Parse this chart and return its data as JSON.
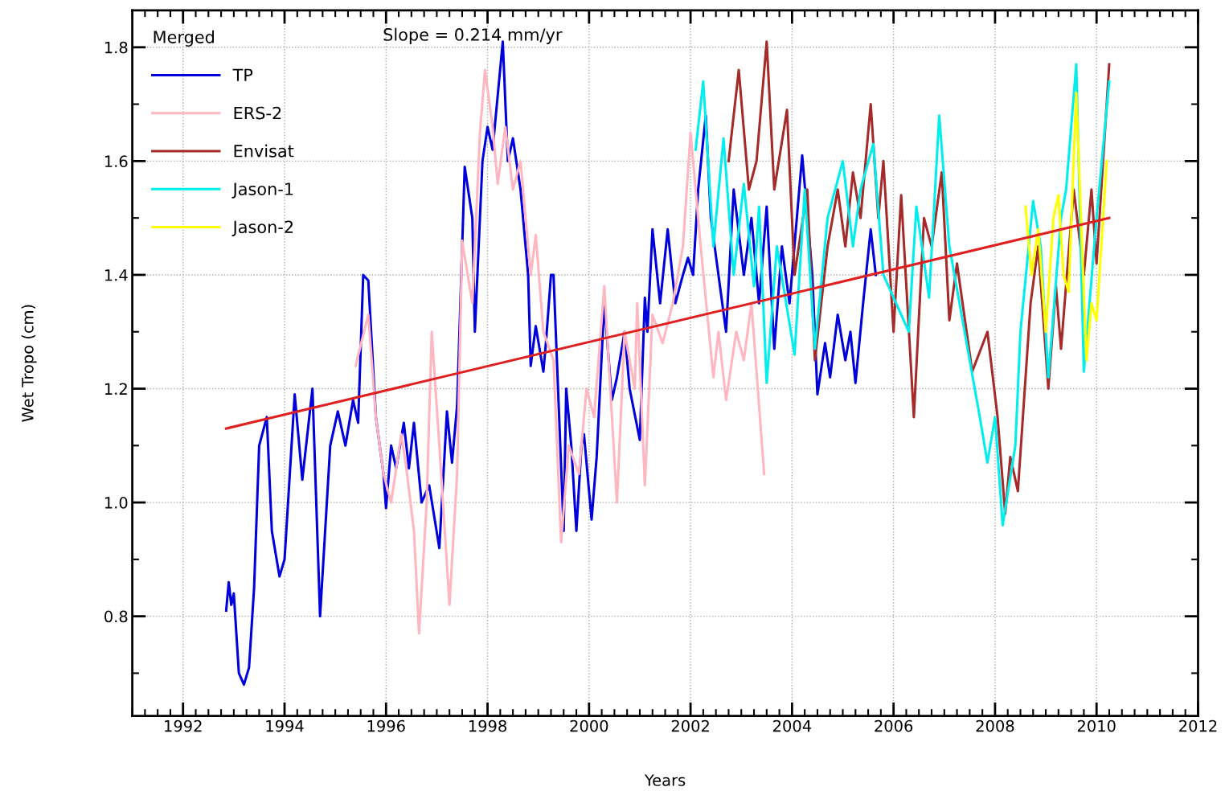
{
  "chart_data": {
    "type": "line",
    "xlabel": "Years",
    "ylabel": "Wet Tropo (cm)",
    "legend_title": "Merged",
    "annotations": [
      "Slope = 0.214 mm/yr"
    ],
    "xlim": [
      1991,
      2012
    ],
    "xticks": [
      1992,
      1994,
      1996,
      1998,
      2000,
      2002,
      2004,
      2006,
      2008,
      2010,
      2012
    ],
    "ylim": [
      0.625,
      1.865
    ],
    "yticks": [
      0.8,
      {
        "value": 1.0,
        "label": "1.0"
      },
      1.2,
      1.4,
      1.6,
      1.8
    ],
    "grid": true,
    "legend": "top left",
    "line_style": "solid",
    "series": [
      {
        "name": "TP",
        "color": "#0000dd",
        "x": [
          1992.85,
          1992.9,
          1992.95,
          1993.0,
          1993.1,
          1993.2,
          1993.3,
          1993.4,
          1993.5,
          1993.65,
          1993.75,
          1993.9,
          1994.0,
          1994.2,
          1994.35,
          1994.55,
          1994.7,
          1994.9,
          1995.05,
          1995.2,
          1995.35,
          1995.45,
          1995.55,
          1995.65,
          1995.8,
          1995.95,
          1996.0,
          1996.1,
          1996.2,
          1996.35,
          1996.45,
          1996.55,
          1996.7,
          1996.85,
          1997.05,
          1997.2,
          1997.3,
          1997.4,
          1997.55,
          1997.7,
          1997.75,
          1997.9,
          1998.0,
          1998.1,
          1998.3,
          1998.4,
          1998.5,
          1998.65,
          1998.8,
          1998.85,
          1998.95,
          1999.1,
          1999.15,
          1999.25,
          1999.3,
          1999.5,
          1999.55,
          1999.65,
          1999.75,
          1999.85,
          1999.9,
          2000.05,
          2000.15,
          2000.3,
          2000.45,
          2000.55,
          2000.7,
          2000.8,
          2001.0,
          2001.1,
          2001.15,
          2001.25,
          2001.4,
          2001.55,
          2001.7,
          2001.85,
          2001.95,
          2002.05,
          2002.15,
          2002.3,
          2002.4,
          2002.55,
          2002.7,
          2002.85,
          2003.05,
          2003.2,
          2003.35,
          2003.5,
          2003.65,
          2003.8,
          2003.95,
          2004.2,
          2004.4,
          2004.5,
          2004.65,
          2004.75,
          2004.9,
          2005.05,
          2005.15,
          2005.25,
          2005.4,
          2005.55,
          2005.65
        ],
        "values": [
          0.81,
          0.86,
          0.82,
          0.84,
          0.7,
          0.68,
          0.71,
          0.85,
          1.1,
          1.15,
          0.95,
          0.87,
          0.9,
          1.19,
          1.04,
          1.2,
          0.8,
          1.1,
          1.16,
          1.1,
          1.18,
          1.14,
          1.4,
          1.39,
          1.15,
          1.05,
          0.99,
          1.1,
          1.06,
          1.14,
          1.06,
          1.14,
          1.0,
          1.03,
          0.92,
          1.16,
          1.07,
          1.17,
          1.59,
          1.5,
          1.3,
          1.6,
          1.66,
          1.62,
          1.81,
          1.6,
          1.64,
          1.55,
          1.4,
          1.24,
          1.31,
          1.23,
          1.28,
          1.4,
          1.4,
          0.95,
          1.2,
          1.1,
          0.95,
          1.1,
          1.12,
          0.97,
          1.08,
          1.35,
          1.18,
          1.22,
          1.3,
          1.2,
          1.11,
          1.36,
          1.3,
          1.48,
          1.35,
          1.48,
          1.35,
          1.4,
          1.43,
          1.4,
          1.55,
          1.68,
          1.5,
          1.4,
          1.3,
          1.55,
          1.4,
          1.5,
          1.35,
          1.52,
          1.27,
          1.45,
          1.35,
          1.61,
          1.4,
          1.19,
          1.28,
          1.22,
          1.33,
          1.25,
          1.3,
          1.21,
          1.35,
          1.48,
          1.4
        ]
      },
      {
        "name": "ERS-2",
        "color": "#ffb6c1",
        "x": [
          1995.4,
          1995.65,
          1995.8,
          1995.95,
          1996.1,
          1996.3,
          1996.4,
          1996.55,
          1996.65,
          1996.8,
          1996.9,
          1997.05,
          1997.25,
          1997.4,
          1997.5,
          1997.7,
          1997.85,
          1997.95,
          1998.1,
          1998.2,
          1998.35,
          1998.5,
          1998.65,
          1998.85,
          1998.95,
          1999.1,
          1999.3,
          1999.45,
          1999.6,
          1999.8,
          1999.95,
          2000.1,
          2000.3,
          2000.55,
          2000.7,
          2000.9,
          2000.95,
          2001.1,
          2001.25,
          2001.45,
          2001.65,
          2001.85,
          2002.0,
          2002.2,
          2002.45,
          2002.55,
          2002.7,
          2002.9,
          2003.05,
          2003.2,
          2003.45
        ],
        "values": [
          1.24,
          1.33,
          1.15,
          1.05,
          1.0,
          1.12,
          1.06,
          0.95,
          0.77,
          1.0,
          1.3,
          1.1,
          0.82,
          1.05,
          1.46,
          1.35,
          1.65,
          1.76,
          1.66,
          1.56,
          1.66,
          1.55,
          1.6,
          1.4,
          1.47,
          1.3,
          1.25,
          0.93,
          1.1,
          1.05,
          1.2,
          1.15,
          1.38,
          1.0,
          1.3,
          1.2,
          1.35,
          1.03,
          1.33,
          1.28,
          1.35,
          1.45,
          1.65,
          1.45,
          1.22,
          1.3,
          1.18,
          1.3,
          1.25,
          1.35,
          1.05
        ]
      },
      {
        "name": "Envisat",
        "color": "#a52a2a",
        "x": [
          2002.75,
          2002.95,
          2003.15,
          2003.3,
          2003.5,
          2003.65,
          2003.9,
          2004.05,
          2004.3,
          2004.45,
          2004.7,
          2004.9,
          2005.05,
          2005.2,
          2005.35,
          2005.55,
          2005.7,
          2005.8,
          2006.0,
          2006.15,
          2006.4,
          2006.6,
          2006.75,
          2006.95,
          2007.1,
          2007.25,
          2007.55,
          2007.85,
          2008.05,
          2008.2,
          2008.3,
          2008.45,
          2008.7,
          2008.85,
          2009.05,
          2009.2,
          2009.3,
          2009.55,
          2009.75,
          2009.9,
          2010.0,
          2010.25
        ],
        "values": [
          1.6,
          1.76,
          1.55,
          1.6,
          1.81,
          1.55,
          1.69,
          1.4,
          1.55,
          1.25,
          1.45,
          1.55,
          1.45,
          1.58,
          1.5,
          1.7,
          1.5,
          1.6,
          1.3,
          1.54,
          1.15,
          1.5,
          1.45,
          1.58,
          1.32,
          1.42,
          1.23,
          1.3,
          1.15,
          0.98,
          1.08,
          1.02,
          1.35,
          1.45,
          1.2,
          1.38,
          1.27,
          1.55,
          1.4,
          1.55,
          1.42,
          1.77
        ]
      },
      {
        "name": "Jason-1",
        "color": "#00eeee",
        "x": [
          2002.1,
          2002.25,
          2002.45,
          2002.65,
          2002.85,
          2003.05,
          2003.25,
          2003.35,
          2003.5,
          2003.7,
          2004.05,
          2004.25,
          2004.45,
          2004.7,
          2005.0,
          2005.2,
          2005.35,
          2005.6,
          2005.8,
          2006.3,
          2006.45,
          2006.7,
          2006.9,
          2007.1,
          2007.4,
          2007.7,
          2007.85,
          2008.0,
          2008.15,
          2008.4,
          2008.5,
          2008.75,
          2008.9,
          2009.05,
          2009.3,
          2009.4,
          2009.6,
          2009.75,
          2010.0,
          2010.25
        ],
        "values": [
          1.62,
          1.74,
          1.45,
          1.64,
          1.4,
          1.56,
          1.38,
          1.52,
          1.21,
          1.45,
          1.26,
          1.55,
          1.27,
          1.5,
          1.6,
          1.45,
          1.55,
          1.63,
          1.4,
          1.3,
          1.52,
          1.36,
          1.68,
          1.45,
          1.3,
          1.15,
          1.07,
          1.15,
          0.96,
          1.1,
          1.3,
          1.53,
          1.45,
          1.22,
          1.5,
          1.55,
          1.77,
          1.23,
          1.5,
          1.74
        ]
      },
      {
        "name": "Jason-2",
        "color": "#ffff00",
        "x": [
          2008.6,
          2008.72,
          2008.85,
          2009.0,
          2009.15,
          2009.25,
          2009.35,
          2009.45,
          2009.6,
          2009.8,
          2009.9,
          2010.0,
          2010.2
        ],
        "values": [
          1.52,
          1.4,
          1.48,
          1.3,
          1.5,
          1.54,
          1.4,
          1.37,
          1.72,
          1.25,
          1.35,
          1.32,
          1.6
        ]
      },
      {
        "type": "line",
        "color": "#e02020",
        "x": [
          1992.85,
          2010.25
        ],
        "values": [
          1.13,
          1.5
        ]
      }
    ]
  }
}
